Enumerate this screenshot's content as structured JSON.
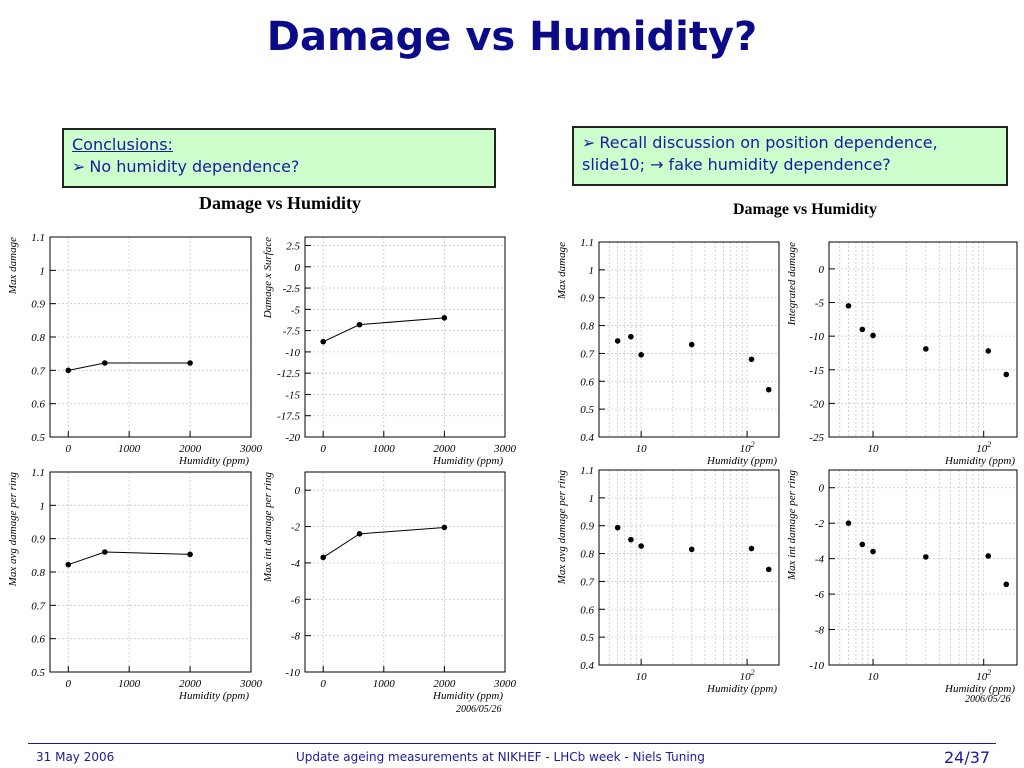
{
  "slide": {
    "title": "Damage vs Humidity?",
    "left_box": {
      "heading": "Conclusions:",
      "bullet": "➢",
      "line1": "No humidity dependence?"
    },
    "right_box": {
      "bullet": "➢",
      "line1": "Recall discussion on position dependence,",
      "line2": "slide10; → fake humidity dependence?"
    },
    "left_group_title": "Damage vs Humidity",
    "right_group_title": "Damage vs Humidity",
    "left_stamp": "2006/05/26",
    "right_stamp": "2006/05/26",
    "footer": {
      "date": "31 May 2006",
      "center": "Update ageing measurements at NIKHEF - LHCb week - Niels Tuning",
      "page": "24/37"
    }
  },
  "colors": {
    "title": "#0b0b8a",
    "box_fill": "#ccffcc",
    "footer": "#1a1aa0"
  },
  "chart_data": [
    {
      "type": "line",
      "xscale": "linear",
      "xlabel": "Humidity (ppm)",
      "ylabel": "Max damage",
      "xlim": [
        -300,
        3000
      ],
      "ylim": [
        0.5,
        1.1
      ],
      "xticks": [
        0,
        1000,
        2000,
        3000
      ],
      "yticks": [
        0.5,
        0.6,
        0.7,
        0.8,
        0.9,
        1,
        1.1
      ],
      "x": [
        0,
        600,
        2000
      ],
      "y": [
        0.7,
        0.722,
        0.722
      ],
      "grid": true,
      "connected": true
    },
    {
      "type": "line",
      "xscale": "linear",
      "xlabel": "Humidity (ppm)",
      "ylabel": "Damage x Surface",
      "xlim": [
        -300,
        3000
      ],
      "ylim": [
        -20,
        3.5
      ],
      "xticks": [
        0,
        1000,
        2000,
        3000
      ],
      "yticks": [
        2.5,
        0,
        -2.5,
        -5,
        -7.5,
        -10,
        -12.5,
        -15,
        -17.5,
        -20
      ],
      "x": [
        0,
        600,
        2000
      ],
      "y": [
        -8.8,
        -6.8,
        -6.0
      ],
      "grid": true,
      "connected": true
    },
    {
      "type": "line",
      "xscale": "linear",
      "xlabel": "Humidity (ppm)",
      "ylabel": "Max avg damage per ring",
      "xlim": [
        -300,
        3000
      ],
      "ylim": [
        0.5,
        1.1
      ],
      "xticks": [
        0,
        1000,
        2000,
        3000
      ],
      "yticks": [
        0.5,
        0.6,
        0.7,
        0.8,
        0.9,
        1,
        1.1
      ],
      "x": [
        0,
        600,
        2000
      ],
      "y": [
        0.822,
        0.86,
        0.853
      ],
      "grid": true,
      "connected": true
    },
    {
      "type": "line",
      "xscale": "linear",
      "xlabel": "Humidity (ppm)",
      "ylabel": "Max int damage per ring",
      "xlim": [
        -300,
        3000
      ],
      "ylim": [
        -10,
        1
      ],
      "xticks": [
        0,
        1000,
        2000,
        3000
      ],
      "yticks": [
        0,
        -2,
        -4,
        -6,
        -8,
        -10
      ],
      "x": [
        0,
        600,
        2000
      ],
      "y": [
        -3.7,
        -2.4,
        -2.05
      ],
      "grid": true,
      "connected": true
    },
    {
      "type": "scatter",
      "xscale": "log",
      "xlabel": "Humidity (ppm)",
      "ylabel": "Max damage",
      "xlim": [
        4,
        200
      ],
      "ylim": [
        0.4,
        1.1
      ],
      "xticks": [
        10,
        100
      ],
      "xticklabels": [
        "10",
        "10^2"
      ],
      "yticks": [
        0.4,
        0.5,
        0.6,
        0.7,
        0.8,
        0.9,
        1,
        1.1
      ],
      "x": [
        6,
        8,
        10,
        30,
        110,
        160
      ],
      "y": [
        0.745,
        0.76,
        0.695,
        0.732,
        0.679,
        0.57
      ],
      "grid": true,
      "connected": false
    },
    {
      "type": "scatter",
      "xscale": "log",
      "xlabel": "Humidity (ppm)",
      "ylabel": "Integrated damage",
      "xlim": [
        4,
        200
      ],
      "ylim": [
        -25,
        4
      ],
      "xticks": [
        10,
        100
      ],
      "xticklabels": [
        "10",
        "10^2"
      ],
      "yticks": [
        0,
        -5,
        -10,
        -15,
        -20,
        -25
      ],
      "x": [
        6,
        8,
        10,
        30,
        110,
        160
      ],
      "y": [
        -5.5,
        -9.0,
        -9.9,
        -11.9,
        -12.2,
        -15.7
      ],
      "grid": true,
      "connected": false
    },
    {
      "type": "scatter",
      "xscale": "log",
      "xlabel": "Humidity (ppm)",
      "ylabel": "Max avg damage per ring",
      "xlim": [
        4,
        200
      ],
      "ylim": [
        0.4,
        1.1
      ],
      "xticks": [
        10,
        100
      ],
      "xticklabels": [
        "10",
        "10^2"
      ],
      "yticks": [
        0.4,
        0.5,
        0.6,
        0.7,
        0.8,
        0.9,
        1,
        1.1
      ],
      "x": [
        6,
        8,
        10,
        30,
        110,
        160
      ],
      "y": [
        0.893,
        0.85,
        0.827,
        0.815,
        0.818,
        0.743
      ],
      "grid": true,
      "connected": false
    },
    {
      "type": "scatter",
      "xscale": "log",
      "xlabel": "Humidity (ppm)",
      "ylabel": "Max int damage per ring",
      "xlim": [
        4,
        200
      ],
      "ylim": [
        -10,
        1
      ],
      "xticks": [
        10,
        100
      ],
      "xticklabels": [
        "10",
        "10^2"
      ],
      "yticks": [
        0,
        -2,
        -4,
        -6,
        -8,
        -10
      ],
      "x": [
        6,
        8,
        10,
        30,
        110,
        160
      ],
      "y": [
        -2.0,
        -3.2,
        -3.6,
        -3.9,
        -3.85,
        -5.45
      ],
      "grid": true,
      "connected": false
    }
  ]
}
